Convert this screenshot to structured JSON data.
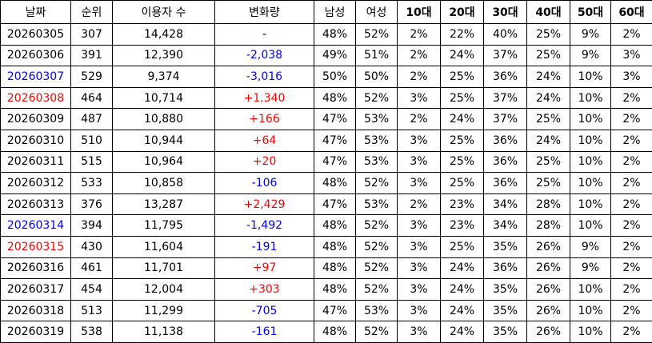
{
  "headers": [
    "날짜",
    "순위",
    "이용자 수",
    "변화량",
    "남성",
    "여성",
    "10대",
    "20대",
    "30대",
    "40대",
    "50대",
    "60대"
  ],
  "colors": {
    "negative": "#0000ff",
    "positive": "#ff0000",
    "saturday": "#0000ff",
    "sunday": "#ff0000"
  },
  "rows": [
    {
      "date": "20260305",
      "date_style": "",
      "rank": "307",
      "users": "14,428",
      "change": "-",
      "change_style": "",
      "male": "48%",
      "female": "52%",
      "a10": "2%",
      "a20": "22%",
      "a30": "40%",
      "a40": "25%",
      "a50": "9%",
      "a60": "2%"
    },
    {
      "date": "20260306",
      "date_style": "",
      "rank": "391",
      "users": "12,390",
      "change": "-2,038",
      "change_style": "blue",
      "male": "49%",
      "female": "51%",
      "a10": "2%",
      "a20": "24%",
      "a30": "37%",
      "a40": "25%",
      "a50": "9%",
      "a60": "3%"
    },
    {
      "date": "20260307",
      "date_style": "blue",
      "rank": "529",
      "users": "9,374",
      "change": "-3,016",
      "change_style": "blue",
      "male": "50%",
      "female": "50%",
      "a10": "2%",
      "a20": "25%",
      "a30": "36%",
      "a40": "24%",
      "a50": "10%",
      "a60": "3%"
    },
    {
      "date": "20260308",
      "date_style": "red",
      "rank": "464",
      "users": "10,714",
      "change": "+1,340",
      "change_style": "red",
      "male": "48%",
      "female": "52%",
      "a10": "3%",
      "a20": "25%",
      "a30": "37%",
      "a40": "24%",
      "a50": "10%",
      "a60": "2%"
    },
    {
      "date": "20260309",
      "date_style": "",
      "rank": "487",
      "users": "10,880",
      "change": "+166",
      "change_style": "red",
      "male": "47%",
      "female": "53%",
      "a10": "2%",
      "a20": "24%",
      "a30": "37%",
      "a40": "25%",
      "a50": "10%",
      "a60": "2%"
    },
    {
      "date": "20260310",
      "date_style": "",
      "rank": "510",
      "users": "10,944",
      "change": "+64",
      "change_style": "red",
      "male": "47%",
      "female": "53%",
      "a10": "3%",
      "a20": "25%",
      "a30": "36%",
      "a40": "24%",
      "a50": "10%",
      "a60": "2%"
    },
    {
      "date": "20260311",
      "date_style": "",
      "rank": "515",
      "users": "10,964",
      "change": "+20",
      "change_style": "red",
      "male": "47%",
      "female": "53%",
      "a10": "3%",
      "a20": "25%",
      "a30": "36%",
      "a40": "25%",
      "a50": "10%",
      "a60": "2%"
    },
    {
      "date": "20260312",
      "date_style": "",
      "rank": "533",
      "users": "10,858",
      "change": "-106",
      "change_style": "blue",
      "male": "48%",
      "female": "52%",
      "a10": "3%",
      "a20": "25%",
      "a30": "36%",
      "a40": "25%",
      "a50": "10%",
      "a60": "2%"
    },
    {
      "date": "20260313",
      "date_style": "",
      "rank": "376",
      "users": "13,287",
      "change": "+2,429",
      "change_style": "red",
      "male": "47%",
      "female": "53%",
      "a10": "2%",
      "a20": "23%",
      "a30": "34%",
      "a40": "28%",
      "a50": "10%",
      "a60": "2%"
    },
    {
      "date": "20260314",
      "date_style": "blue",
      "rank": "394",
      "users": "11,795",
      "change": "-1,492",
      "change_style": "blue",
      "male": "48%",
      "female": "52%",
      "a10": "3%",
      "a20": "23%",
      "a30": "34%",
      "a40": "28%",
      "a50": "10%",
      "a60": "2%"
    },
    {
      "date": "20260315",
      "date_style": "red",
      "rank": "430",
      "users": "11,604",
      "change": "-191",
      "change_style": "blue",
      "male": "48%",
      "female": "52%",
      "a10": "3%",
      "a20": "25%",
      "a30": "35%",
      "a40": "26%",
      "a50": "9%",
      "a60": "2%"
    },
    {
      "date": "20260316",
      "date_style": "",
      "rank": "461",
      "users": "11,701",
      "change": "+97",
      "change_style": "red",
      "male": "48%",
      "female": "52%",
      "a10": "3%",
      "a20": "24%",
      "a30": "36%",
      "a40": "26%",
      "a50": "9%",
      "a60": "2%"
    },
    {
      "date": "20260317",
      "date_style": "",
      "rank": "454",
      "users": "12,004",
      "change": "+303",
      "change_style": "red",
      "male": "48%",
      "female": "52%",
      "a10": "3%",
      "a20": "24%",
      "a30": "35%",
      "a40": "26%",
      "a50": "10%",
      "a60": "2%"
    },
    {
      "date": "20260318",
      "date_style": "",
      "rank": "513",
      "users": "11,299",
      "change": "-705",
      "change_style": "blue",
      "male": "47%",
      "female": "53%",
      "a10": "3%",
      "a20": "24%",
      "a30": "35%",
      "a40": "26%",
      "a50": "10%",
      "a60": "2%"
    },
    {
      "date": "20260319",
      "date_style": "",
      "rank": "538",
      "users": "11,138",
      "change": "-161",
      "change_style": "blue",
      "male": "48%",
      "female": "52%",
      "a10": "3%",
      "a20": "24%",
      "a30": "35%",
      "a40": "26%",
      "a50": "10%",
      "a60": "2%"
    }
  ]
}
